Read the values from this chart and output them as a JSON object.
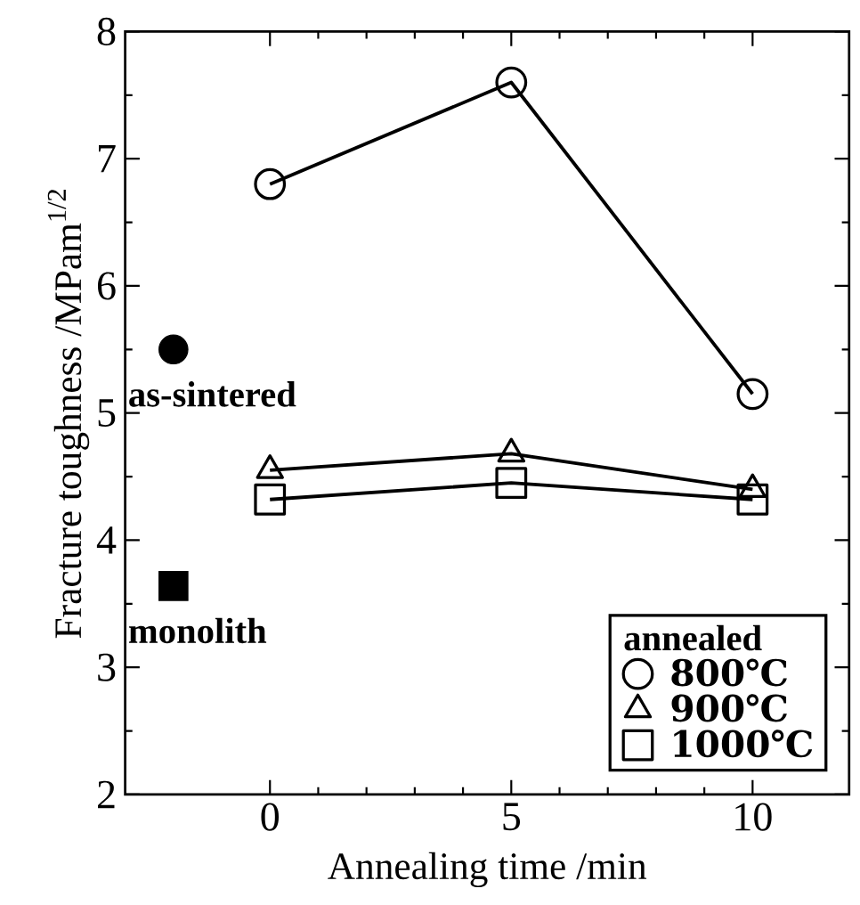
{
  "chart_data": {
    "type": "line",
    "xlabel": "Annealing time /min",
    "ylabel": "Fracture toughness /MPam$^{1/2}$",
    "legend_title": "annealed",
    "xlim": [
      -3,
      12
    ],
    "ylim": [
      2,
      8
    ],
    "xticks": [
      0,
      5,
      10
    ],
    "yticks": [
      2,
      3,
      4,
      5,
      6,
      7,
      8
    ],
    "legend": "bottom right",
    "series": [
      {
        "name": "800℃",
        "marker": "circle",
        "color": "#000000",
        "x": [
          0,
          5,
          10
        ],
        "values": [
          6.8,
          7.6,
          5.15
        ]
      },
      {
        "name": "900℃",
        "marker": "triangle",
        "color": "#000000",
        "x": [
          0,
          5,
          10
        ],
        "values": [
          4.55,
          4.68,
          4.4
        ]
      },
      {
        "name": "1000℃",
        "marker": "square",
        "color": "#000000",
        "x": [
          0,
          5,
          10
        ],
        "values": [
          4.32,
          4.45,
          4.32
        ]
      },
      {
        "name": "as-sintered",
        "type": "scatter",
        "marker": "circle",
        "color": "#000000",
        "x": [
          -2
        ],
        "values": [
          5.5
        ]
      },
      {
        "name": "monolith",
        "type": "scatter",
        "marker": "square",
        "color": "#000000",
        "x": [
          -2
        ],
        "values": [
          3.64
        ]
      }
    ]
  }
}
